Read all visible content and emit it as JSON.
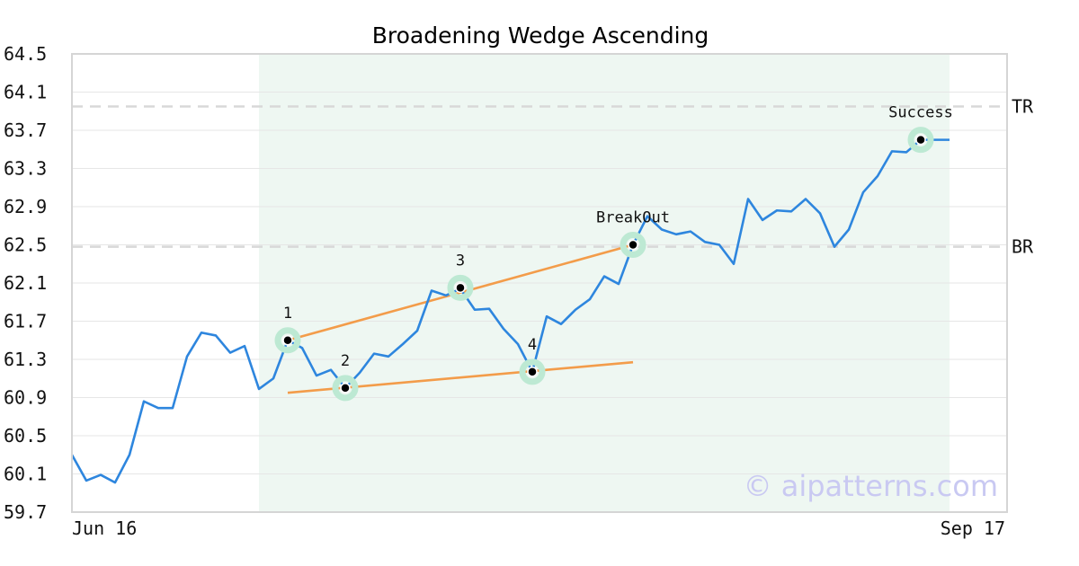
{
  "chart_data": {
    "type": "line",
    "title": "Broadening Wedge Ascending",
    "ylim": [
      59.7,
      64.5
    ],
    "y_ticks": [
      "64.5",
      "64.1",
      "63.7",
      "63.3",
      "62.9",
      "62.5",
      "62.1",
      "61.7",
      "61.3",
      "60.9",
      "60.5",
      "60.1",
      "59.7"
    ],
    "x_start_label": "Jun 16",
    "x_end_label": "Sep 17",
    "grid": true,
    "highlight_range": [
      13,
      61
    ],
    "series": [
      {
        "color": "#2e86de",
        "values": [
          60.3,
          60.03,
          60.09,
          60.01,
          60.3,
          60.86,
          60.79,
          60.79,
          61.33,
          61.58,
          61.55,
          61.37,
          61.44,
          60.99,
          61.1,
          61.5,
          61.42,
          61.13,
          61.19,
          61.0,
          61.16,
          61.36,
          61.33,
          61.46,
          61.6,
          62.02,
          61.97,
          62.04,
          61.82,
          61.83,
          61.62,
          61.46,
          61.17,
          61.75,
          61.67,
          61.82,
          61.93,
          62.17,
          62.09,
          62.5,
          62.8,
          62.66,
          62.61,
          62.64,
          62.53,
          62.5,
          62.3,
          62.98,
          62.76,
          62.86,
          62.85,
          62.98,
          62.83,
          62.48,
          62.66,
          63.05,
          63.22,
          63.48,
          63.47,
          63.6,
          63.6,
          63.6
        ]
      }
    ],
    "trendlines": [
      {
        "color": "#f39c4a",
        "from": [
          15,
          61.5
        ],
        "to": [
          39,
          62.5
        ]
      },
      {
        "color": "#f39c4a",
        "from": [
          15,
          60.95
        ],
        "to": [
          39,
          61.27
        ]
      }
    ],
    "levels": [
      {
        "label": "TR",
        "value": 63.95
      },
      {
        "label": "BR",
        "value": 62.48
      }
    ],
    "points": [
      {
        "label": "1",
        "x": 15,
        "y": 61.5,
        "label_pos": "above"
      },
      {
        "label": "2",
        "x": 19,
        "y": 61.0,
        "label_pos": "above"
      },
      {
        "label": "3",
        "x": 27,
        "y": 62.05,
        "label_pos": "above"
      },
      {
        "label": "4",
        "x": 32,
        "y": 61.17,
        "label_pos": "above"
      },
      {
        "label": "BreakOut",
        "x": 39,
        "y": 62.5,
        "label_pos": "above"
      },
      {
        "label": "Success",
        "x": 59,
        "y": 63.6,
        "label_pos": "above"
      }
    ],
    "watermark": "© aipatterns.com"
  }
}
